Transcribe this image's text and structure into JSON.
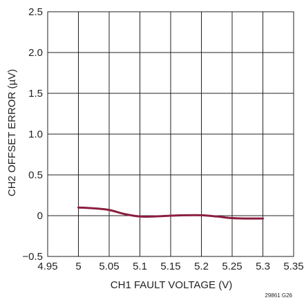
{
  "chart_data": {
    "type": "line",
    "xlabel": "CH1 FAULT VOLTAGE (V)",
    "ylabel": "CH2 OFFSET ERROR (µV)",
    "xlim": [
      4.95,
      5.35
    ],
    "ylim": [
      -0.5,
      2.5
    ],
    "x_ticks": [
      "4.95",
      "5",
      "5.05",
      "5.1",
      "5.15",
      "5.2",
      "5.25",
      "5.3",
      "5.35"
    ],
    "y_ticks": [
      "-0.5",
      "0",
      "0.5",
      "1.0",
      "1.5",
      "2.0",
      "2.5"
    ],
    "grid": true,
    "series": [
      {
        "color": "#8b1e3f",
        "x": [
          5.0,
          5.025,
          5.05,
          5.075,
          5.1,
          5.125,
          5.15,
          5.175,
          5.2,
          5.225,
          5.25,
          5.275,
          5.3
        ],
        "y": [
          0.1,
          0.09,
          0.07,
          0.02,
          -0.01,
          -0.01,
          0.0,
          0.005,
          0.005,
          -0.01,
          -0.03,
          -0.035,
          -0.035
        ]
      }
    ]
  },
  "figure_id": "29861 G26"
}
